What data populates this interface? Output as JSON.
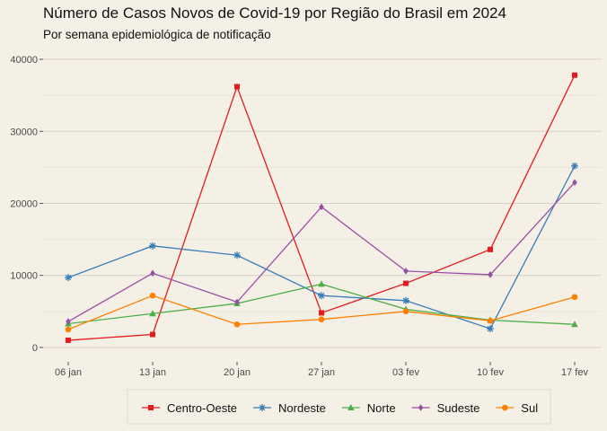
{
  "chart_data": {
    "type": "line",
    "title": "Número de Casos Novos de Covid-19 por Região do Brasil em 2024",
    "subtitle": "Por semana epidemiológica de notificação",
    "xlabel": "",
    "ylabel": "",
    "categories": [
      "06 jan",
      "13 jan",
      "20 jan",
      "27 jan",
      "03 fev",
      "10 fev",
      "17 fev"
    ],
    "yticks": [
      "0",
      "10000",
      "20000",
      "30000",
      "40000"
    ],
    "ylim": [
      -2000,
      41500
    ],
    "grid": true,
    "legend_position": "bottom",
    "series": [
      {
        "name": "Centro-Oeste",
        "color": "#e41a1c",
        "marker": "square",
        "values": [
          1000,
          1800,
          36200,
          4800,
          8900,
          13600,
          37800
        ]
      },
      {
        "name": "Nordeste",
        "color": "#377eb8",
        "marker": "asterisk",
        "values": [
          9700,
          14100,
          12800,
          7200,
          6500,
          2600,
          25200
        ]
      },
      {
        "name": "Norte",
        "color": "#4daf4a",
        "marker": "triangle",
        "values": [
          3300,
          4700,
          6100,
          8800,
          5300,
          3800,
          3200
        ]
      },
      {
        "name": "Sudeste",
        "color": "#984ea3",
        "marker": "diamond",
        "values": [
          3600,
          10300,
          6300,
          19500,
          10600,
          10100,
          22900
        ]
      },
      {
        "name": "Sul",
        "color": "#ff7f00",
        "marker": "circle",
        "values": [
          2500,
          7200,
          3200,
          3900,
          5000,
          3700,
          7000
        ]
      }
    ]
  }
}
